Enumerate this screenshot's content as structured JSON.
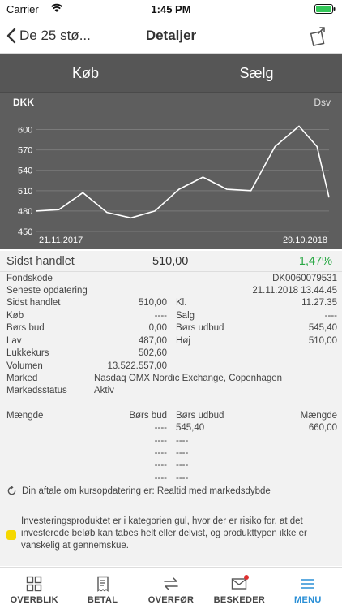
{
  "status_bar": {
    "carrier": "Carrier",
    "time": "1:45 PM"
  },
  "nav": {
    "back_label": "De 25 stø...",
    "title": "Detaljer"
  },
  "trade_tabs": {
    "buy": "Køb",
    "sell": "Sælg"
  },
  "chart_data": {
    "type": "line",
    "currency_label": "DKK",
    "period_label": "Dsv",
    "x_start_label": "21.11.2017",
    "x_end_label": "29.10.2018",
    "x": [
      "2017-11-21",
      "2017-12-18",
      "2018-01-15",
      "2018-02-12",
      "2018-03-12",
      "2018-04-09",
      "2018-05-07",
      "2018-06-04",
      "2018-07-02",
      "2018-07-30",
      "2018-08-27",
      "2018-09-24",
      "2018-10-15",
      "2018-10-29"
    ],
    "series": [
      {
        "values": [
          480,
          482,
          507,
          478,
          470,
          480,
          512,
          530,
          512,
          510,
          575,
          605,
          575,
          500
        ]
      }
    ],
    "ylim": [
      450,
      615
    ],
    "yticks": [
      450,
      480,
      510,
      540,
      570,
      600
    ],
    "grid": true,
    "colors": {
      "line": "#ffffff",
      "grid": "#7a7a7a",
      "background": "#5e5e5e"
    }
  },
  "summary": {
    "label": "Sidst handlet",
    "value": "510,00",
    "change": "1,47%",
    "change_color": "#2aa845"
  },
  "details": {
    "fondskode_label": "Fondskode",
    "fondskode_value": "DK0060079531",
    "opdatering_label": "Seneste opdatering",
    "opdatering_value": "21.11.2018 13.44.45",
    "sidst_label": "Sidst handlet",
    "sidst_value": "510,00",
    "kl_label": "Kl.",
    "kl_value": "11.27.35",
    "koeb_label": "Køb",
    "koeb_value": "----",
    "salg_label": "Salg",
    "salg_value": "----",
    "boers_bud_label": "Børs bud",
    "boers_bud_value": "0,00",
    "boers_udbud_label": "Børs udbud",
    "boers_udbud_value": "545,40",
    "lav_label": "Lav",
    "lav_value": "487,00",
    "hoej_label": "Høj",
    "hoej_value": "510,00",
    "lukkekurs_label": "Lukkekurs",
    "lukkekurs_value": "502,60",
    "volumen_label": "Volumen",
    "volumen_value": "13.522.557,00",
    "marked_label": "Marked",
    "marked_value": "Nasdaq OMX Nordic Exchange, Copenhagen",
    "markedsstatus_label": "Markedsstatus",
    "markedsstatus_value": "Aktiv"
  },
  "orderbook": {
    "col_maengde": "Mængde",
    "col_boers_bud": "Børs bud",
    "col_boers_udbud": "Børs udbud",
    "col_maengde_right": "Mængde",
    "rows": [
      {
        "bud": "----",
        "udbud": "545,40",
        "maengde": "660,00"
      },
      {
        "bud": "----",
        "udbud": "----",
        "maengde": ""
      },
      {
        "bud": "----",
        "udbud": "----",
        "maengde": ""
      },
      {
        "bud": "----",
        "udbud": "----",
        "maengde": ""
      },
      {
        "bud": "----",
        "udbud": "----",
        "maengde": ""
      }
    ]
  },
  "refresh_note": "Din aftale om kursopdatering er: Realtid med markedsdybde",
  "risk_note": "Investeringsproduktet er i kategorien gul, hvor der er risiko for, at det investerede beløb kan tabes helt eller delvist, og produkttypen ikke er vanskelig at gennemskue.",
  "risk_color": "#f5d800",
  "tabs": [
    {
      "label": "OVERBLIK",
      "icon": "grid-icon"
    },
    {
      "label": "BETAL",
      "icon": "receipt-icon"
    },
    {
      "label": "OVERFØR",
      "icon": "transfer-icon"
    },
    {
      "label": "BESKEDER",
      "icon": "mail-icon"
    },
    {
      "label": "MENU",
      "icon": "menu-icon"
    }
  ],
  "accent_color": "#2a8fd6"
}
